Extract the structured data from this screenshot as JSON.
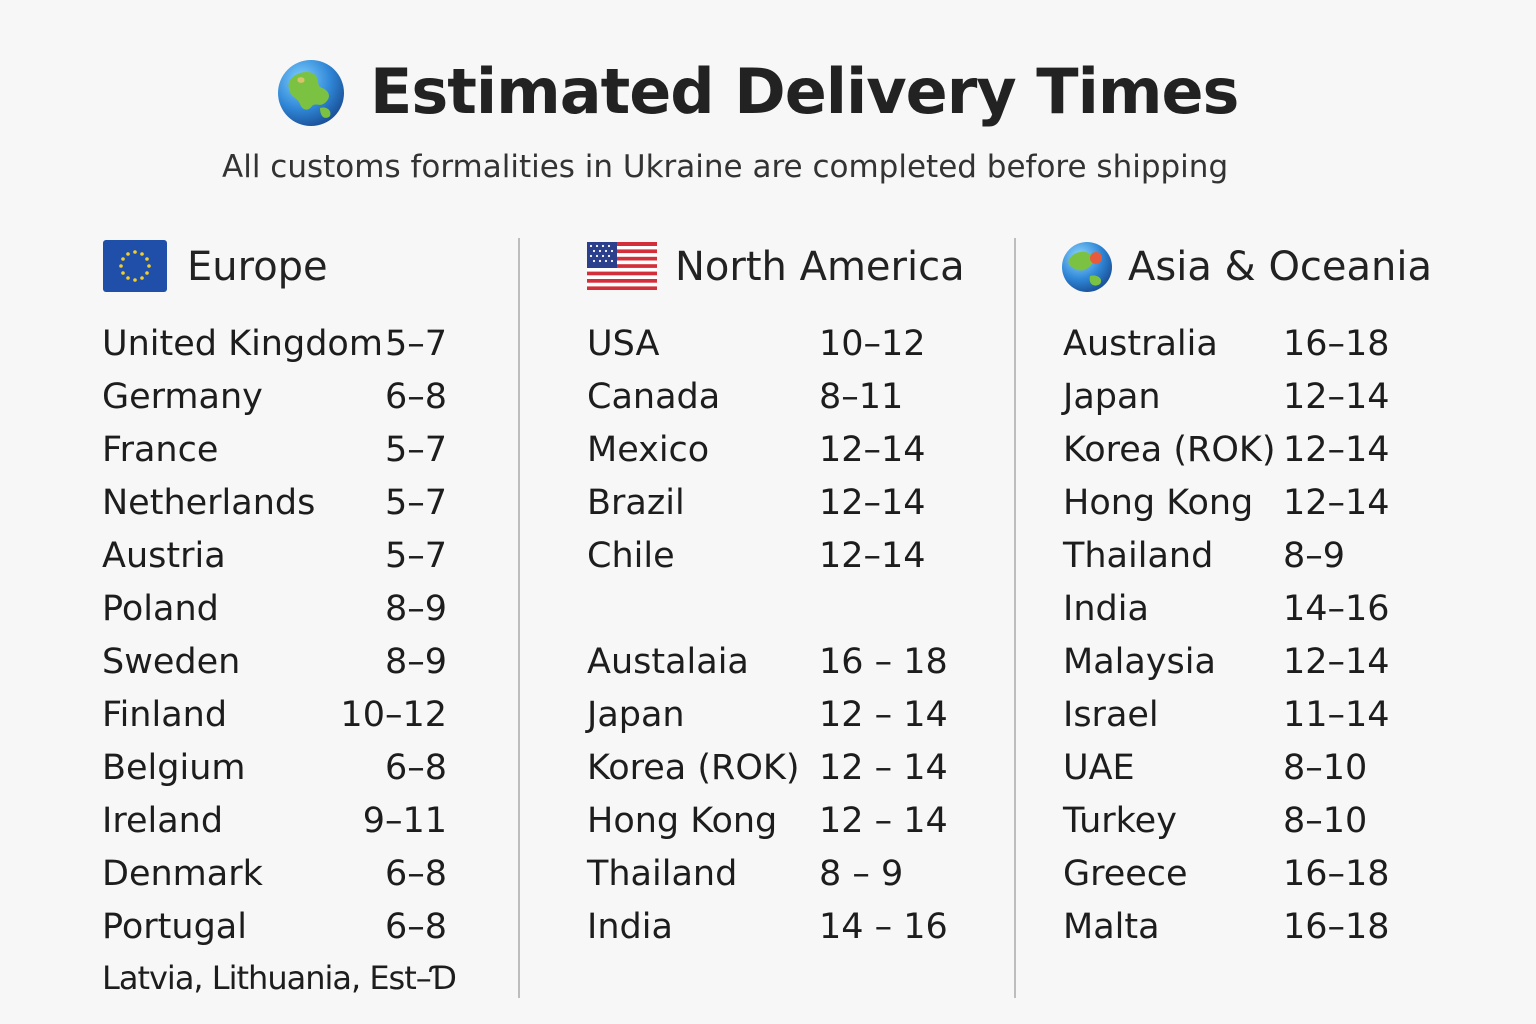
{
  "header": {
    "title": "Estimated Delivery Times",
    "subtitle": "All customs formalities in Ukraine are completed before shipping",
    "icon": "globe-icon"
  },
  "regions": [
    {
      "name": "Europe",
      "icon": "eu-flag-icon",
      "rows": [
        {
          "country": "United Kingdom",
          "days": "5–7"
        },
        {
          "country": "Germany",
          "days": "6–8"
        },
        {
          "country": "France",
          "days": "5–7"
        },
        {
          "country": "Netherlands",
          "days": "5–7"
        },
        {
          "country": "Austria",
          "days": "5–7"
        },
        {
          "country": "Poland",
          "days": "8–9"
        },
        {
          "country": "Sweden",
          "days": "8–9"
        },
        {
          "country": "Finland",
          "days": "10–12"
        },
        {
          "country": "Belgium",
          "days": "6–8"
        },
        {
          "country": "Ireland",
          "days": "9–11"
        },
        {
          "country": "Denmark",
          "days": "6–8"
        },
        {
          "country": "Portugal",
          "days": "6–8"
        }
      ],
      "footer": "Latvia, Lithuania, Est–Ɗ"
    },
    {
      "name": "North America",
      "icon": "us-flag-icon",
      "rows": [
        {
          "country": "USA",
          "days": "10–12"
        },
        {
          "country": "Canada",
          "days": "8–11"
        },
        {
          "country": "Mexico",
          "days": "12–14"
        },
        {
          "country": "Brazil",
          "days": "12–14"
        },
        {
          "country": "Chile",
          "days": "12–14"
        }
      ],
      "rows2": [
        {
          "country": "Austalaia",
          "days": "16 – 18"
        },
        {
          "country": "Japan",
          "days": "12 – 14"
        },
        {
          "country": "Korea (ROK)",
          "days": "12 – 14"
        },
        {
          "country": "Hong Kong",
          "days": "12 – 14"
        },
        {
          "country": "Thailand",
          "days": "8 – 9"
        },
        {
          "country": "India",
          "days": "14 – 16"
        }
      ]
    },
    {
      "name": "Asia & Oceania",
      "icon": "globe-asia-icon",
      "rows": [
        {
          "country": "Australia",
          "days": "16–18"
        },
        {
          "country": "Japan",
          "days": "12–14"
        },
        {
          "country": "Korea (ROK)",
          "days": "12–14"
        },
        {
          "country": "Hong Kong",
          "days": "12–14"
        },
        {
          "country": "Thailand",
          "days": "8–9"
        },
        {
          "country": "India",
          "days": "14–16"
        },
        {
          "country": "Malaysia",
          "days": "12–14"
        },
        {
          "country": "Israel",
          "days": "11–14"
        },
        {
          "country": "UAE",
          "days": "8–10"
        },
        {
          "country": "Turkey",
          "days": "8–10"
        },
        {
          "country": "Greece",
          "days": "16–18"
        },
        {
          "country": "Malta",
          "days": "16–18"
        }
      ]
    }
  ],
  "colors": {
    "background": "#f7f7f7",
    "text": "#1d1d1d",
    "divider": "#bdbdbd",
    "eu_blue": "#1f4fa8",
    "eu_star": "#f3cf2a"
  }
}
